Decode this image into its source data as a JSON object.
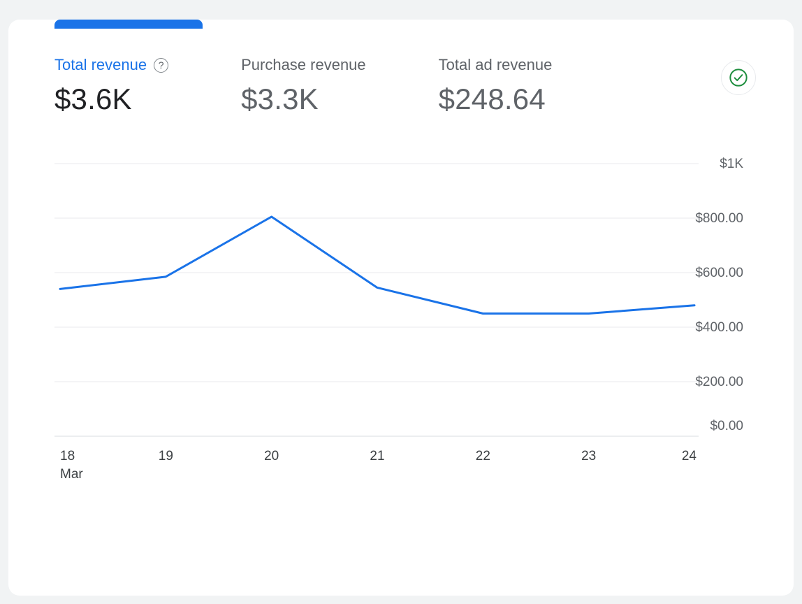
{
  "card": {
    "accent_color": "#1a73e8"
  },
  "metrics": [
    {
      "label": "Total revenue",
      "value": "$3.6K",
      "active": true
    },
    {
      "label": "Purchase revenue",
      "value": "$3.3K",
      "active": false
    },
    {
      "label": "Total ad revenue",
      "value": "$248.64",
      "active": false
    }
  ],
  "icons": {
    "help": "?",
    "check_color": "#1e8e3e"
  },
  "chart_data": {
    "type": "line",
    "series": [
      {
        "name": "Total revenue",
        "values": [
          540,
          585,
          805,
          545,
          450,
          450,
          480
        ]
      }
    ],
    "x": [
      "18",
      "19",
      "20",
      "21",
      "22",
      "23",
      "24"
    ],
    "x_sublabel": "Mar",
    "ylim": [
      0,
      1000
    ],
    "y_ticks": [
      {
        "value": 1000,
        "label": "$1K"
      },
      {
        "value": 800,
        "label": "$800.00"
      },
      {
        "value": 600,
        "label": "$600.00"
      },
      {
        "value": 400,
        "label": "$400.00"
      },
      {
        "value": 200,
        "label": "$200.00"
      },
      {
        "value": 0,
        "label": "$0.00"
      }
    ],
    "line_color": "#1a73e8",
    "grid_color": "#e8eaed",
    "axis_color": "#dadce0",
    "y_label_color": "#5f6368",
    "x_label_color": "#3c4043",
    "grid": true,
    "legend_position": "none",
    "title": ""
  }
}
